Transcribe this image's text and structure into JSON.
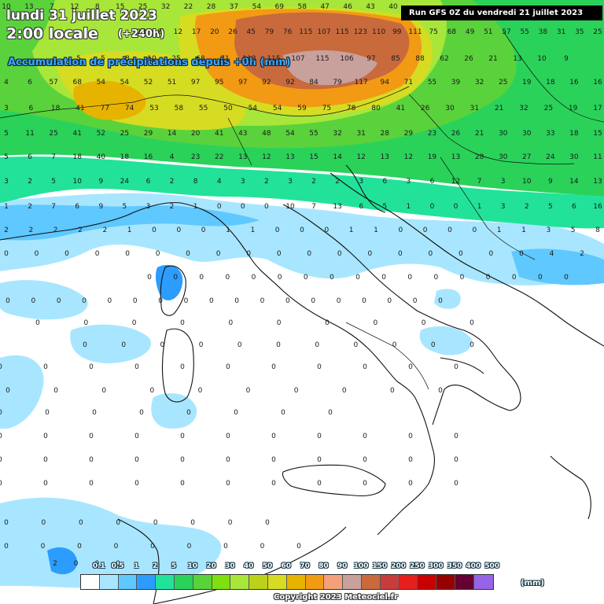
{
  "header": {
    "date": "lundi 31 juillet 2023",
    "local_time": "2:00 locale",
    "lead_time": "(+240h)",
    "description": "Accumulation de précipitations depuis +0h (mm)",
    "run_info": "Run GFS 0Z du vendredi 21 juillet 2023"
  },
  "legend": {
    "unit": "(mm)",
    "labels": [
      "0.1",
      "0.5",
      "1",
      "2",
      "5",
      "10",
      "20",
      "30",
      "40",
      "50",
      "60",
      "70",
      "80",
      "90",
      "100",
      "150",
      "200",
      "250",
      "300",
      "350",
      "400",
      "500"
    ],
    "colors": [
      "#ffffff",
      "#a8e6ff",
      "#5fc8ff",
      "#2c9dff",
      "#22e29a",
      "#2ad25a",
      "#5ad23c",
      "#7ee00e",
      "#a8e63a",
      "#bcd21a",
      "#d6dc22",
      "#e6b400",
      "#f29a14",
      "#f4a07a",
      "#c8a09c",
      "#c86a3c",
      "#c83c3c",
      "#e61e1e",
      "#c80000",
      "#960000",
      "#640032",
      "#9664e6"
    ]
  },
  "footer": {
    "copyright": "Copyright 2023 Meteociel.fr"
  },
  "precip_values": [
    [
      "10",
      "13",
      "7",
      "12",
      "8",
      "15",
      "25",
      "32",
      "22",
      "28",
      "37",
      "54",
      "69",
      "58",
      "47",
      "46",
      "43",
      "40"
    ],
    [
      "13",
      "8",
      "12",
      "17",
      "20",
      "26",
      "45",
      "79",
      "76",
      "115",
      "107",
      "115",
      "123",
      "110",
      "99",
      "111",
      "75",
      "68",
      "49",
      "51",
      "57",
      "55",
      "38",
      "31",
      "35",
      "25"
    ],
    [
      "5",
      "5",
      "8",
      "10",
      "25",
      "68",
      "71",
      "113",
      "115",
      "107",
      "115",
      "106",
      "97",
      "85",
      "88",
      "62",
      "26",
      "21",
      "13",
      "10",
      "9"
    ],
    [
      "4",
      "6",
      "57",
      "68",
      "54",
      "54",
      "52",
      "51",
      "97",
      "95",
      "97",
      "92",
      "92",
      "84",
      "79",
      "117",
      "94",
      "71",
      "55",
      "39",
      "32",
      "25",
      "19",
      "18",
      "16",
      "16"
    ],
    [
      "3",
      "6",
      "18",
      "41",
      "77",
      "74",
      "53",
      "58",
      "55",
      "50",
      "54",
      "54",
      "59",
      "75",
      "78",
      "80",
      "41",
      "26",
      "30",
      "31",
      "21",
      "32",
      "25",
      "19",
      "17"
    ],
    [
      "5",
      "11",
      "25",
      "41",
      "52",
      "25",
      "29",
      "14",
      "20",
      "41",
      "43",
      "48",
      "54",
      "55",
      "32",
      "31",
      "28",
      "29",
      "23",
      "26",
      "21",
      "30",
      "30",
      "33",
      "18",
      "15"
    ],
    [
      "5",
      "6",
      "7",
      "18",
      "40",
      "18",
      "16",
      "4",
      "23",
      "22",
      "13",
      "12",
      "13",
      "15",
      "14",
      "12",
      "13",
      "12",
      "19",
      "13",
      "28",
      "30",
      "27",
      "24",
      "30",
      "11"
    ],
    [
      "3",
      "2",
      "5",
      "10",
      "9",
      "24",
      "6",
      "2",
      "8",
      "4",
      "3",
      "2",
      "3",
      "2",
      "2",
      "3",
      "6",
      "3",
      "6",
      "12",
      "7",
      "3",
      "10",
      "9",
      "14",
      "13"
    ],
    [
      "1",
      "2",
      "7",
      "6",
      "9",
      "5",
      "3",
      "2",
      "1",
      "0",
      "0",
      "0",
      "10",
      "7",
      "13",
      "6",
      "5",
      "1",
      "0",
      "0",
      "1",
      "3",
      "2",
      "5",
      "6",
      "16"
    ],
    [
      "2",
      "2",
      "2",
      "2",
      "2",
      "1",
      "0",
      "0",
      "0",
      "1",
      "1",
      "0",
      "0",
      "0",
      "1",
      "1",
      "0",
      "0",
      "0",
      "0",
      "1",
      "1",
      "3",
      "5",
      "8"
    ],
    [
      "0",
      "0",
      "0",
      "0",
      "0",
      "0",
      "0",
      "0",
      "0",
      "0",
      "0",
      "0",
      "0",
      "0",
      "0",
      "0",
      "0",
      "0",
      "4",
      "2"
    ],
    [
      "0",
      "0",
      "0",
      "0",
      "0",
      "0",
      "0",
      "0",
      "0",
      "0",
      "0",
      "0",
      "0",
      "0",
      "0",
      "0",
      "0"
    ],
    [
      "0",
      "0",
      "0",
      "0",
      "0",
      "0",
      "0",
      "0",
      "0",
      "0",
      "0",
      "0",
      "0",
      "0",
      "0",
      "0",
      "0",
      "0"
    ],
    [
      "0",
      "0",
      "0",
      "0",
      "0",
      "0",
      "0",
      "0",
      "0",
      "0"
    ],
    [
      "0",
      "0",
      "0",
      "0",
      "0",
      "0",
      "0",
      "0",
      "0",
      "0",
      "0"
    ],
    [
      "0",
      "0",
      "0",
      "0",
      "0",
      "0",
      "0",
      "0",
      "0",
      "0",
      "0"
    ],
    [
      "0",
      "0",
      "0",
      "0",
      "0",
      "0",
      "0",
      "0",
      "0",
      "0"
    ],
    [
      "0",
      "0",
      "0",
      "0",
      "0",
      "0",
      "0",
      "0"
    ],
    [
      "0",
      "0",
      "0",
      "0",
      "0",
      "0",
      "0",
      "0",
      "0",
      "0",
      "0"
    ],
    [
      "0",
      "0",
      "0",
      "0",
      "0",
      "0",
      "0",
      "0",
      "0",
      "0",
      "0"
    ],
    [
      "0",
      "0",
      "0",
      "0",
      "0",
      "0",
      "0",
      "0",
      "0",
      "0",
      "0"
    ],
    [
      "0",
      "0",
      "0",
      "0",
      "0",
      "0",
      "0",
      "0"
    ],
    [
      "0",
      "0",
      "0",
      "0",
      "0",
      "0",
      "0",
      "0",
      "0"
    ],
    [
      "2",
      "0",
      "0",
      "0"
    ]
  ]
}
